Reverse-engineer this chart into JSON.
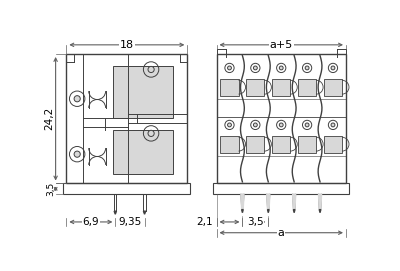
{
  "bg_color": "#ffffff",
  "line_color": "#404040",
  "gray_fill": "#c8c8c8",
  "light_gray": "#d8d8d8",
  "dim_color": "#606060",
  "dim_18": "18",
  "dim_a5": "a+5",
  "dim_242": "24,2",
  "dim_35": "3,5",
  "dim_69": "6,9",
  "dim_935": "9,35",
  "dim_21": "2,1",
  "dim_35b": "3,5",
  "dim_a": "a"
}
